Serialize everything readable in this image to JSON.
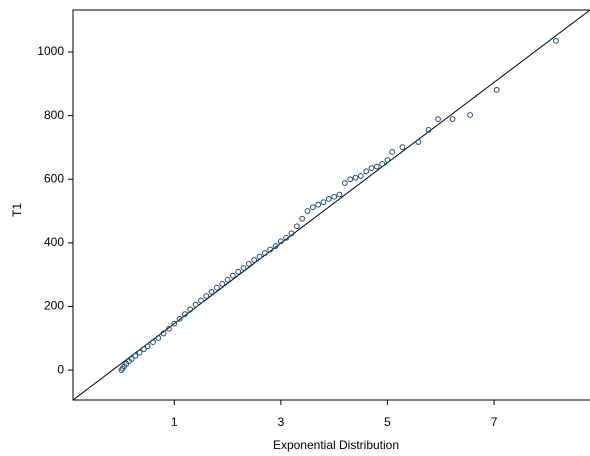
{
  "chart_data": {
    "type": "scatter",
    "x_label": "Exponential Distribution",
    "y_label": "T1",
    "xlim": [
      -0.9,
      8.8
    ],
    "ylim": [
      -94,
      1132
    ],
    "xticks": [
      1,
      3,
      5,
      7
    ],
    "yticks": [
      0,
      200,
      400,
      600,
      800,
      1000
    ],
    "color": "#1f4e79",
    "reference_line": {
      "x": [
        -0.9,
        8.8
      ],
      "y": [
        -94,
        1132
      ],
      "color": "#000000"
    },
    "x": [
      0.01,
      0.03,
      0.06,
      0.1,
      0.15,
      0.2,
      0.27,
      0.35,
      0.43,
      0.5,
      0.6,
      0.7,
      0.8,
      0.9,
      1.0,
      1.1,
      1.2,
      1.3,
      1.4,
      1.5,
      1.6,
      1.7,
      1.8,
      1.9,
      2.0,
      2.1,
      2.2,
      2.3,
      2.4,
      2.5,
      2.6,
      2.7,
      2.8,
      2.9,
      3.0,
      3.1,
      3.2,
      3.3,
      3.4,
      3.5,
      3.6,
      3.7,
      3.8,
      3.9,
      4.0,
      4.1,
      4.2,
      4.3,
      4.4,
      4.5,
      4.6,
      4.7,
      4.8,
      4.9,
      5.0,
      5.09,
      5.28,
      5.58,
      5.77,
      5.95,
      6.22,
      6.55,
      7.05,
      8.16
    ],
    "values": [
      0,
      5,
      12,
      20,
      28,
      35,
      45,
      55,
      66,
      75,
      88,
      101,
      115,
      130,
      146,
      161,
      176,
      191,
      206,
      219,
      233,
      246,
      259,
      271,
      284,
      297,
      309,
      321,
      334,
      346,
      357,
      368,
      379,
      390,
      405,
      416,
      430,
      452,
      476,
      500,
      512,
      520,
      528,
      538,
      545,
      552,
      588,
      600,
      605,
      610,
      625,
      635,
      640,
      648,
      660,
      686,
      701,
      717,
      755,
      789,
      789,
      802,
      881,
      1035
    ]
  }
}
